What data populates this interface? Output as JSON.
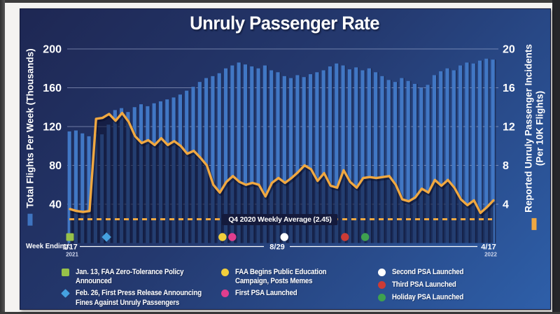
{
  "title": "Unruly Passenger Rate",
  "left_axis": {
    "label": "Total Flights Per Week (Thousands)",
    "ticks": [
      "200",
      "160",
      "120",
      "80",
      "40"
    ]
  },
  "right_axis": {
    "label": "Reported Unruly Passenger Incidents",
    "label_line2": "(Per 10K Flights)",
    "ticks": [
      "20",
      "16",
      "12",
      "8",
      "4"
    ]
  },
  "x_axis": {
    "prefix": "Week Ending:",
    "labels": [
      {
        "text": "1/17",
        "year": "2021"
      },
      {
        "text": "8/29",
        "year": ""
      },
      {
        "text": "4/17",
        "year": "2022"
      }
    ]
  },
  "average_line": {
    "label": "Q4 2020 Weekly Average (2.45)",
    "value": 2.45
  },
  "chart_data": {
    "type": "combo bar + line",
    "x_unit": "week",
    "x_start": "1/17/2021",
    "x_end": "4/17/2022",
    "n_points": 66,
    "grid": true,
    "series": [
      {
        "name": "Total Flights Per Week (Thousands)",
        "type": "bar",
        "axis": "left",
        "ylim": [
          0,
          200
        ],
        "color": "#4177c4",
        "values": [
          115,
          116,
          113,
          110,
          112,
          112,
          122,
          137,
          139,
          135,
          140,
          143,
          141,
          144,
          146,
          148,
          150,
          153,
          157,
          161,
          166,
          170,
          172,
          175,
          180,
          183,
          186,
          184,
          182,
          180,
          183,
          178,
          176,
          172,
          170,
          173,
          171,
          174,
          176,
          178,
          182,
          185,
          183,
          179,
          181,
          178,
          180,
          176,
          172,
          168,
          166,
          170,
          167,
          164,
          160,
          163,
          173,
          177,
          180,
          178,
          183,
          186,
          185,
          188,
          190,
          189
        ]
      },
      {
        "name": "Reported Unruly Passenger Incidents (Per 10K Flights)",
        "type": "line",
        "axis": "right",
        "ylim": [
          0,
          20
        ],
        "color": "#f0a841",
        "values": [
          3.5,
          3.3,
          3.2,
          3.3,
          12.8,
          12.9,
          13.3,
          12.6,
          13.4,
          12.5,
          11.0,
          10.3,
          10.6,
          10.1,
          10.8,
          10.1,
          10.5,
          10.0,
          9.2,
          9.5,
          8.8,
          8.0,
          6.0,
          5.2,
          6.3,
          6.9,
          6.3,
          6.0,
          6.2,
          6.0,
          4.8,
          6.2,
          6.7,
          6.2,
          6.7,
          7.3,
          8.0,
          7.6,
          6.4,
          7.2,
          5.9,
          5.7,
          7.5,
          6.3,
          5.7,
          6.7,
          6.8,
          6.7,
          6.8,
          6.9,
          6.0,
          4.5,
          4.3,
          4.7,
          5.6,
          5.2,
          6.5,
          5.9,
          6.5,
          5.7,
          4.5,
          3.9,
          4.4,
          3.1,
          3.7,
          4.4
        ]
      }
    ],
    "reference_line": {
      "label": "Q4 2020 Weekly Average (2.45)",
      "axis": "right",
      "value": 2.45
    }
  },
  "events": [
    {
      "marker": "square",
      "color": "#97c149",
      "week": 0,
      "label": "Jan. 13, FAA Zero-Tolerance Policy Announced"
    },
    {
      "marker": "diamond",
      "color": "#45a1e0",
      "week": 5.6,
      "label": "Feb. 26, First Press Release Announcing Fines Against Unruly Passengers"
    },
    {
      "marker": "circle",
      "color": "#f2cf3c",
      "week": 23.4,
      "label": "FAA Begins Public Education Campaign, Posts Memes"
    },
    {
      "marker": "circle",
      "color": "#e03e8e",
      "week": 24.9,
      "label": "First PSA Launched"
    },
    {
      "marker": "circle",
      "color": "#ffffff",
      "week": 32.9,
      "label": "Second PSA Launched"
    },
    {
      "marker": "circle",
      "color": "#cc3b35",
      "week": 42.2,
      "label": "Third PSA Launched"
    },
    {
      "marker": "circle",
      "color": "#3ea14f",
      "week": 45.3,
      "label": "Holiday PSA Launched"
    }
  ],
  "legend_columns": [
    [
      0,
      1
    ],
    [
      2,
      3
    ],
    [
      4,
      5,
      6
    ]
  ],
  "colors": {
    "card_gradient_start": "#1e2753",
    "card_gradient_end": "#2e5fa9",
    "bar": "#4177c4",
    "bar_edge": "#1b2a52",
    "line": "#f0a841",
    "under_line_shade": "rgba(12,17,46,0.55)",
    "grid": "rgba(190,200,232,0.5)",
    "text": "#ffffff"
  }
}
